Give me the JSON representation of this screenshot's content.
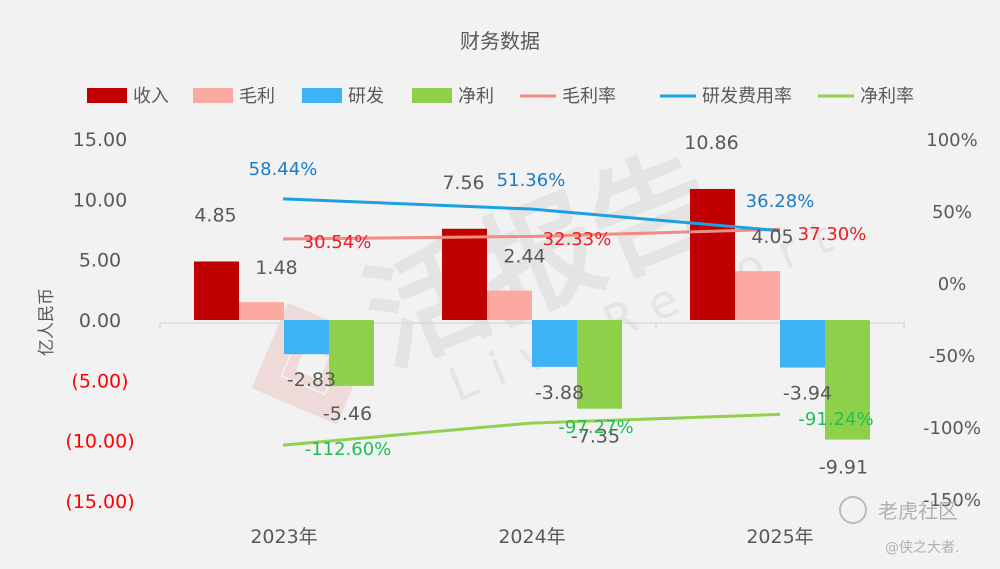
{
  "chart_data": {
    "type": "bar",
    "title": "财务数据",
    "ylabel": "亿人民币",
    "categories": [
      "2023年",
      "2024年",
      "2025年"
    ],
    "left_axis": {
      "ylim": [
        -15,
        15
      ],
      "ticks": [
        15,
        10,
        5,
        0,
        -5,
        -10,
        -15
      ],
      "tick_labels": [
        "15.00",
        "10.00",
        "5.00",
        "0.00",
        "(5.00)",
        "(10.00)",
        "(15.00)"
      ]
    },
    "right_axis": {
      "ylim": [
        -150,
        100
      ],
      "ticks": [
        100,
        50,
        0,
        -50,
        -100,
        -150
      ],
      "tick_labels": [
        "100%",
        "50%",
        "0%",
        "-50%",
        "-100%",
        "-150%"
      ]
    },
    "series": [
      {
        "name": "收入",
        "kind": "bar",
        "color": "#c00000",
        "values": [
          4.85,
          7.56,
          10.86
        ],
        "labels": [
          "4.85",
          "7.56",
          "10.86"
        ]
      },
      {
        "name": "毛利",
        "kind": "bar",
        "color": "#fca9a1",
        "values": [
          1.48,
          2.44,
          4.05
        ],
        "labels": [
          "1.48",
          "2.44",
          "4.05"
        ]
      },
      {
        "name": "研发",
        "kind": "bar",
        "color": "#3db2f5",
        "values": [
          -2.83,
          -3.88,
          -3.94
        ],
        "labels": [
          "-2.83",
          "-3.88",
          "-3.94"
        ]
      },
      {
        "name": "净利",
        "kind": "bar",
        "color": "#8ed04a",
        "values": [
          -5.46,
          -7.35,
          -9.91
        ],
        "labels": [
          "-5.46",
          "-7.35",
          "-9.91"
        ]
      },
      {
        "name": "毛利率",
        "kind": "line",
        "axis": "right",
        "color": "#f28b82",
        "values": [
          30.54,
          32.33,
          37.3
        ],
        "labels": [
          "30.54%",
          "32.33%",
          "37.30%"
        ]
      },
      {
        "name": "研发费用率",
        "kind": "line",
        "axis": "right",
        "color": "#1ba1e2",
        "values": [
          58.44,
          51.36,
          36.28
        ],
        "labels": [
          "58.44%",
          "51.36%",
          "36.28%"
        ]
      },
      {
        "name": "净利率",
        "kind": "line",
        "axis": "right",
        "color": "#92d050",
        "values": [
          -112.6,
          -97.27,
          -91.24
        ],
        "labels": [
          "-112.60%",
          "-97.27%",
          "-91.24%"
        ]
      }
    ],
    "legend_position": "top",
    "grid": false
  },
  "colors": {
    "background": "#f2f2f2",
    "negative_tick": "#ff0000",
    "text": "#595959",
    "axis": "#d9d9d9"
  },
  "watermark": {
    "brand": "活报告",
    "sub": "LiveReport"
  },
  "corner_mark": {
    "line1": "老虎社区",
    "line2": "@侠之大者."
  }
}
